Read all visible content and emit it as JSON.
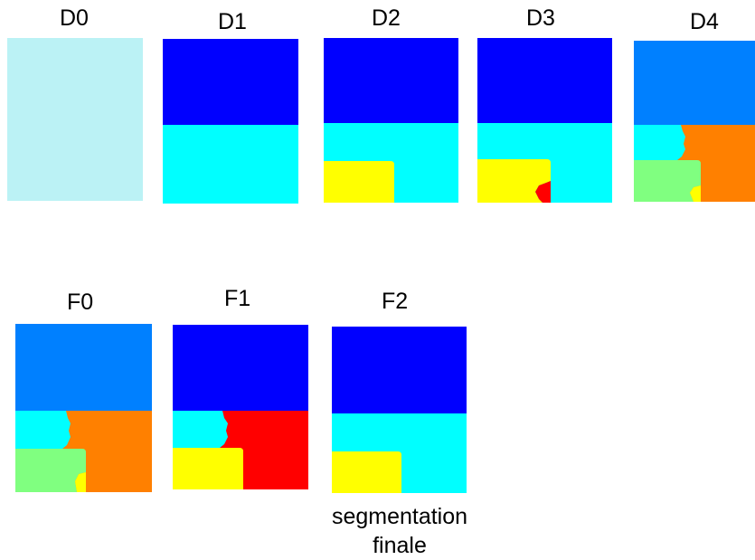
{
  "colors": {
    "light_cyan": "#bbf2f5",
    "blue": "#0000ff",
    "cyan": "#00ffff",
    "yellow": "#ffff00",
    "red": "#ff0000",
    "mid_blue": "#0080ff",
    "orange": "#ff8000",
    "light_green": "#80ff80"
  },
  "panels": [
    {
      "id": "d0",
      "label": "D0"
    },
    {
      "id": "d1",
      "label": "D1"
    },
    {
      "id": "d2",
      "label": "D2"
    },
    {
      "id": "d3",
      "label": "D3"
    },
    {
      "id": "d4",
      "label": "D4"
    },
    {
      "id": "f0",
      "label": "F0"
    },
    {
      "id": "f1",
      "label": "F1"
    },
    {
      "id": "f2",
      "label": "F2"
    }
  ],
  "caption": {
    "line1": "segmentation",
    "line2": "finale"
  }
}
